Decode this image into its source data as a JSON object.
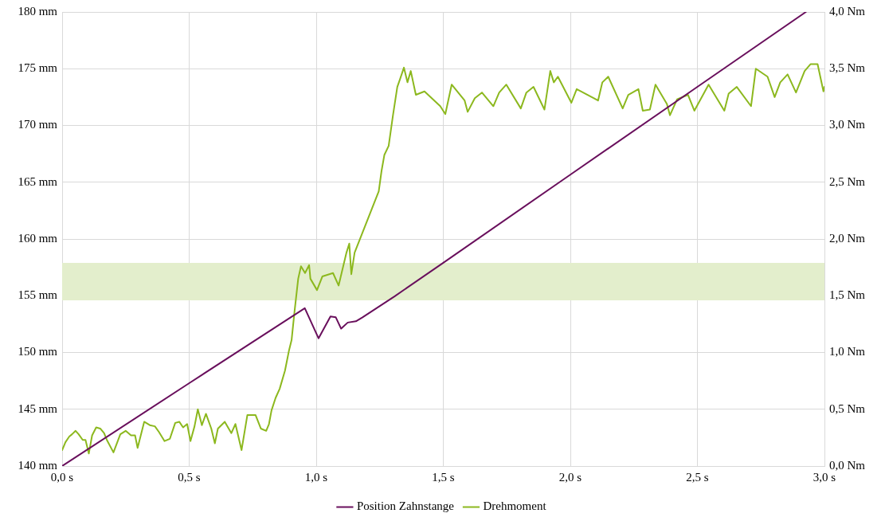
{
  "chart_data": {
    "type": "line",
    "xlim": [
      0,
      3
    ],
    "xticks": [
      {
        "value": 0,
        "label": "0,0 s"
      },
      {
        "value": 0.5,
        "label": "0,5 s"
      },
      {
        "value": 1,
        "label": "1,0 s"
      },
      {
        "value": 1.5,
        "label": "1,5 s"
      },
      {
        "value": 2,
        "label": "2,0 s"
      },
      {
        "value": 2.5,
        "label": "2,5 s"
      },
      {
        "value": 3,
        "label": "3,0 s"
      }
    ],
    "ylim": [
      140,
      180
    ],
    "yticks": [
      {
        "value": 140,
        "label": "140 mm"
      },
      {
        "value": 145,
        "label": "145 mm"
      },
      {
        "value": 150,
        "label": "150 mm"
      },
      {
        "value": 155,
        "label": "155 mm"
      },
      {
        "value": 160,
        "label": "160 mm"
      },
      {
        "value": 165,
        "label": "165 mm"
      },
      {
        "value": 170,
        "label": "170 mm"
      },
      {
        "value": 175,
        "label": "175 mm"
      },
      {
        "value": 180,
        "label": "180 mm"
      }
    ],
    "y2lim": [
      0,
      4
    ],
    "y2ticks": [
      {
        "value": 0,
        "label": "0,0 Nm"
      },
      {
        "value": 0.5,
        "label": "0,5 Nm"
      },
      {
        "value": 1,
        "label": "1,0 Nm"
      },
      {
        "value": 1.5,
        "label": "1,5 Nm"
      },
      {
        "value": 2,
        "label": "2,0 Nm"
      },
      {
        "value": 2.5,
        "label": "2,5 Nm"
      },
      {
        "value": 3,
        "label": "3,0 Nm"
      },
      {
        "value": 3.5,
        "label": "3,5 Nm"
      },
      {
        "value": 4,
        "label": "4,0 Nm"
      }
    ],
    "grid": true,
    "legend": "bottom",
    "marker": "none",
    "line_style": "solid",
    "bands": [
      {
        "axis": "y",
        "from": 154.6,
        "to": 157.9,
        "color": "#e3eecc"
      }
    ],
    "series": [
      {
        "name": "Position Zahnstange",
        "color": "#690f5c",
        "x": [
          0,
          0.5,
          0.955,
          1.009,
          1.056,
          1.077,
          1.098,
          1.124,
          1.156,
          1.182,
          1.309,
          1.5,
          2,
          2.5,
          2.927
        ],
        "values": [
          140,
          147.3,
          153.9,
          151.25,
          153.17,
          153.1,
          152.1,
          152.64,
          152.75,
          153.1,
          154.96,
          157.9,
          165.67,
          173.4,
          180
        ]
      },
      {
        "name": "Drehmoment",
        "color": "#8cb81e",
        "axis": "y2",
        "x": [
          0,
          0.013,
          0.028,
          0.039,
          0.053,
          0.065,
          0.081,
          0.092,
          0.105,
          0.118,
          0.134,
          0.15,
          0.165,
          0.176,
          0.202,
          0.229,
          0.25,
          0.271,
          0.287,
          0.297,
          0.323,
          0.345,
          0.365,
          0.381,
          0.403,
          0.424,
          0.445,
          0.461,
          0.476,
          0.492,
          0.505,
          0.521,
          0.534,
          0.55,
          0.566,
          0.587,
          0.601,
          0.613,
          0.64,
          0.666,
          0.682,
          0.706,
          0.729,
          0.761,
          0.782,
          0.803,
          0.814,
          0.824,
          0.84,
          0.856,
          0.877,
          0.893,
          0.903,
          0.914,
          0.929,
          0.94,
          0.956,
          0.972,
          0.977,
          1.003,
          1.024,
          1.066,
          1.088,
          1.119,
          1.13,
          1.138,
          1.151,
          1.246,
          1.257,
          1.268,
          1.285,
          1.302,
          1.319,
          1.33,
          1.345,
          1.359,
          1.372,
          1.392,
          1.426,
          1.488,
          1.508,
          1.533,
          1.584,
          1.596,
          1.624,
          1.652,
          1.697,
          1.72,
          1.748,
          1.805,
          1.827,
          1.855,
          1.898,
          1.921,
          1.935,
          1.951,
          2.004,
          2.025,
          2.093,
          2.109,
          2.126,
          2.149,
          2.206,
          2.228,
          2.268,
          2.285,
          2.313,
          2.335,
          2.38,
          2.392,
          2.42,
          2.463,
          2.488,
          2.544,
          2.606,
          2.623,
          2.655,
          2.711,
          2.73,
          2.776,
          2.804,
          2.826,
          2.855,
          2.888,
          2.922,
          2.945,
          2.973,
          2.996,
          3
        ],
        "values": [
          0.14,
          0.21,
          0.26,
          0.28,
          0.31,
          0.28,
          0.23,
          0.23,
          0.11,
          0.27,
          0.34,
          0.33,
          0.29,
          0.23,
          0.12,
          0.28,
          0.31,
          0.27,
          0.27,
          0.16,
          0.39,
          0.36,
          0.35,
          0.3,
          0.22,
          0.24,
          0.38,
          0.39,
          0.34,
          0.37,
          0.22,
          0.35,
          0.5,
          0.36,
          0.46,
          0.33,
          0.2,
          0.33,
          0.39,
          0.29,
          0.37,
          0.14,
          0.45,
          0.45,
          0.33,
          0.31,
          0.37,
          0.49,
          0.6,
          0.68,
          0.84,
          1.02,
          1.11,
          1.35,
          1.65,
          1.76,
          1.7,
          1.77,
          1.65,
          1.55,
          1.67,
          1.7,
          1.59,
          1.88,
          1.96,
          1.69,
          1.88,
          2.42,
          2.6,
          2.74,
          2.82,
          3.09,
          3.34,
          3.41,
          3.51,
          3.38,
          3.48,
          3.27,
          3.3,
          3.17,
          3.1,
          3.36,
          3.22,
          3.12,
          3.24,
          3.29,
          3.17,
          3.29,
          3.36,
          3.15,
          3.29,
          3.34,
          3.14,
          3.48,
          3.38,
          3.43,
          3.2,
          3.32,
          3.24,
          3.22,
          3.38,
          3.43,
          3.15,
          3.27,
          3.32,
          3.13,
          3.14,
          3.36,
          3.19,
          3.09,
          3.23,
          3.27,
          3.13,
          3.36,
          3.13,
          3.28,
          3.34,
          3.17,
          3.5,
          3.43,
          3.25,
          3.38,
          3.45,
          3.29,
          3.48,
          3.54,
          3.54,
          3.3,
          3.34
        ]
      }
    ]
  }
}
